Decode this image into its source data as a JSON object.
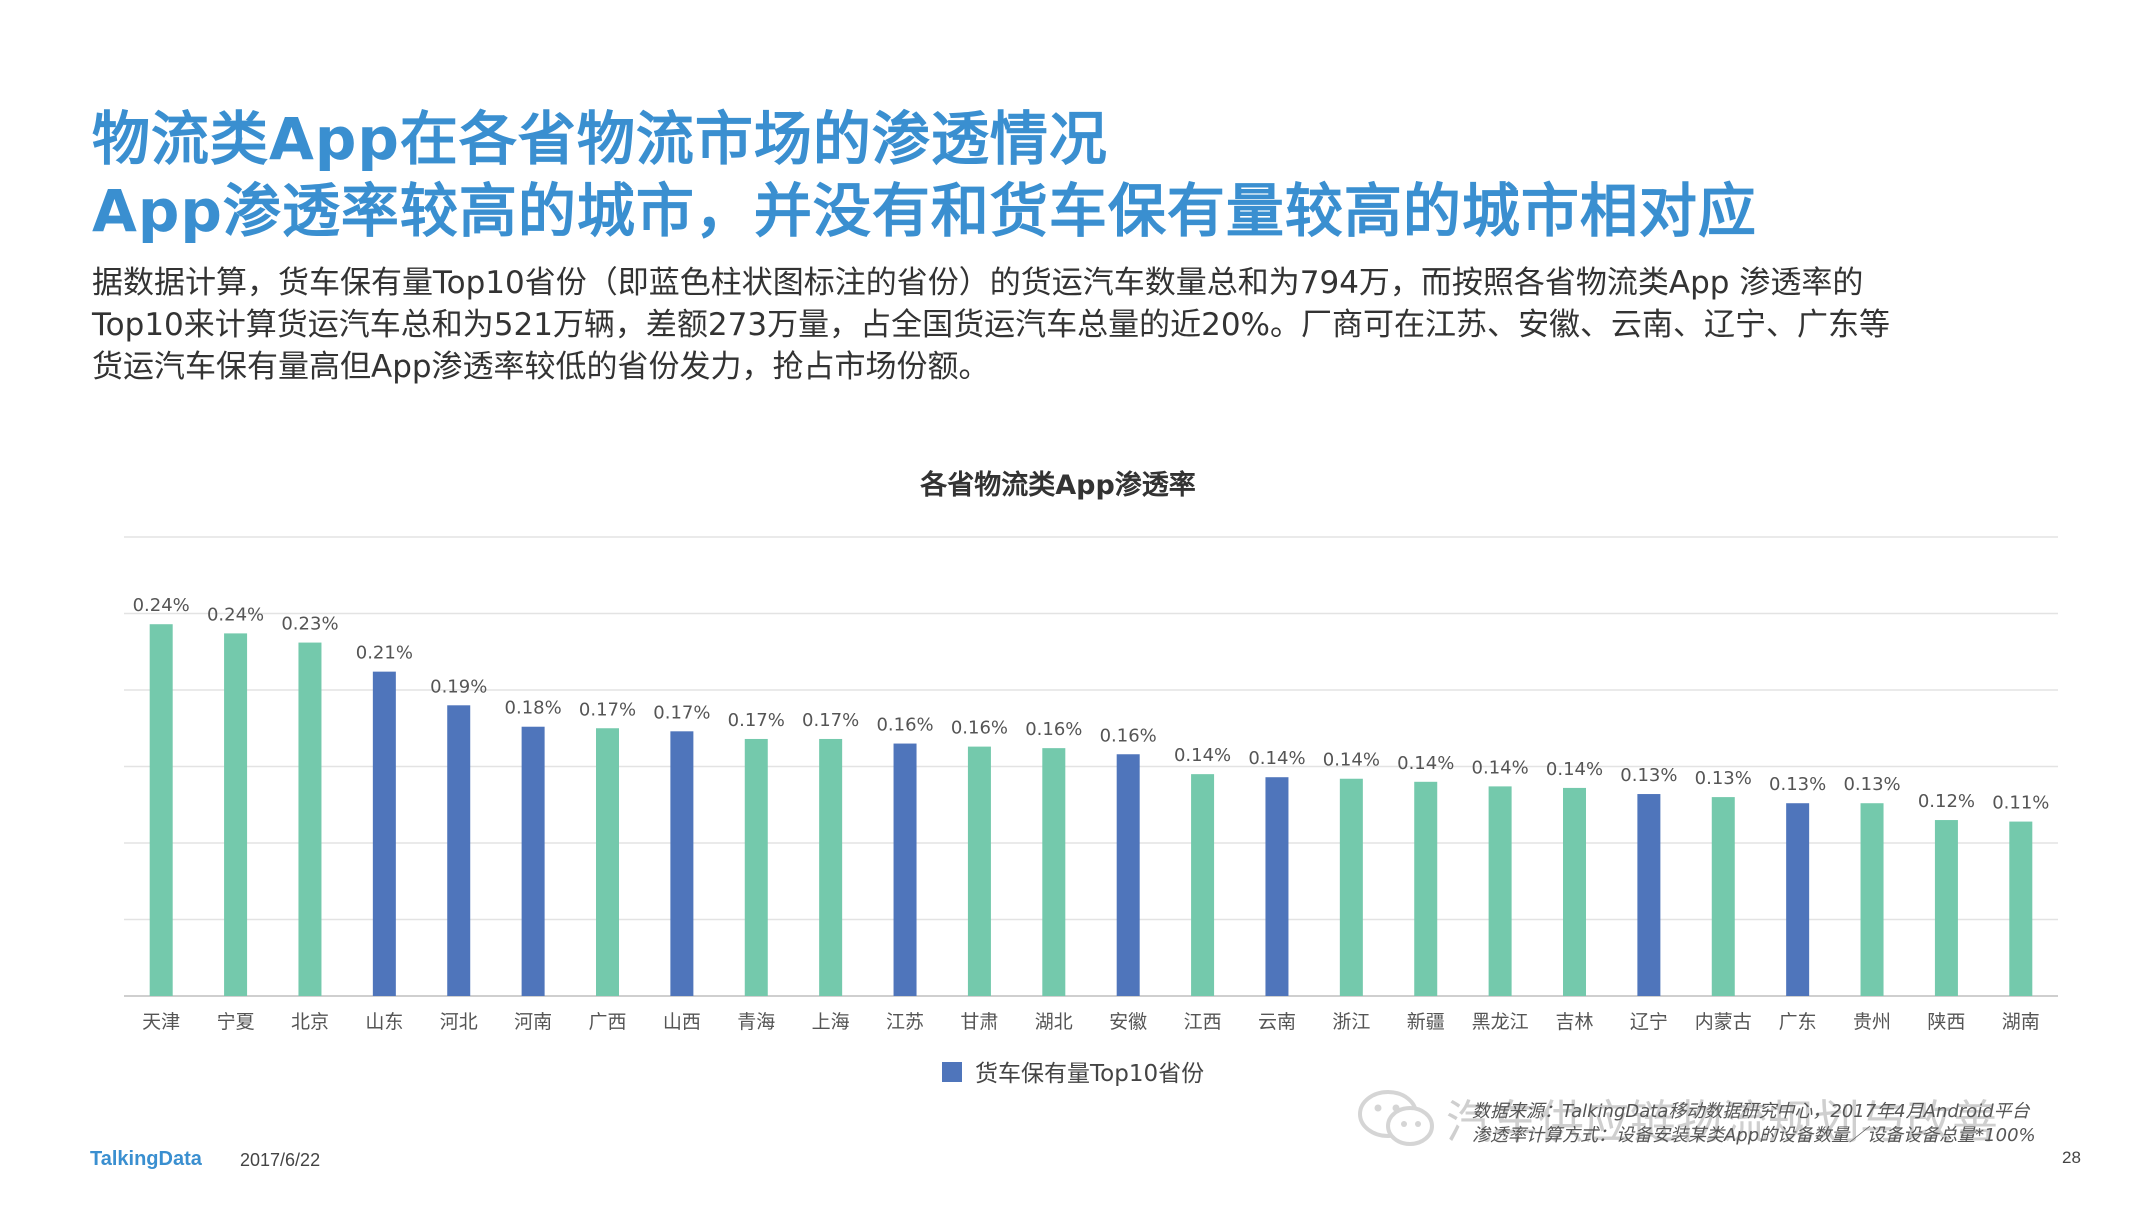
{
  "header": {
    "title_line1": "物流类App在各省物流市场的渗透情况",
    "title_line2": "App渗透率较高的城市，并没有和货车保有量较高的城市相对应"
  },
  "description": {
    "line1": "据数据计算，货车保有量Top10省份（即蓝色柱状图标注的省份）的货运汽车数量总和为794万，而按照各省物流类App 渗透率的",
    "line2": "Top10来计算货运汽车总和为521万辆，差额273万量，占全国货运汽车总量的近20%。厂商可在江苏、安徽、云南、辽宁、广东等",
    "line3": "货运汽车保有量高但App渗透率较低的省份发力，抢占市场份额。"
  },
  "colors": {
    "green": "#74c9ac",
    "blue": "#4f75bb",
    "title": "#3a8fd0",
    "grid": "#e3e3e3"
  },
  "chart_data": {
    "type": "bar",
    "title": "各省物流类App渗透率",
    "categories": [
      "天津",
      "宁夏",
      "北京",
      "山东",
      "河北",
      "河南",
      "广西",
      "山西",
      "青海",
      "上海",
      "江苏",
      "甘肃",
      "湖北",
      "安徽",
      "江西",
      "云南",
      "浙江",
      "新疆",
      "黑龙江",
      "吉林",
      "辽宁",
      "内蒙古",
      "广东",
      "贵州",
      "陕西",
      "湖南"
    ],
    "values": [
      0.00243,
      0.00237,
      0.00231,
      0.00212,
      0.0019,
      0.00176,
      0.00175,
      0.00173,
      0.00168,
      0.00168,
      0.00165,
      0.00163,
      0.00162,
      0.00158,
      0.00145,
      0.00143,
      0.00142,
      0.0014,
      0.00137,
      0.00136,
      0.00132,
      0.0013,
      0.00126,
      0.00126,
      0.00115,
      0.00114
    ],
    "labels": [
      "0.24%",
      "0.24%",
      "0.23%",
      "0.21%",
      "0.19%",
      "0.18%",
      "0.17%",
      "0.17%",
      "0.17%",
      "0.17%",
      "0.16%",
      "0.16%",
      "0.16%",
      "0.16%",
      "0.14%",
      "0.14%",
      "0.14%",
      "0.14%",
      "0.14%",
      "0.14%",
      "0.13%",
      "0.13%",
      "0.13%",
      "0.13%",
      "0.12%",
      "0.11%"
    ],
    "top10_flags": [
      false,
      false,
      false,
      true,
      true,
      true,
      false,
      true,
      false,
      false,
      true,
      false,
      false,
      true,
      false,
      true,
      false,
      false,
      false,
      false,
      true,
      false,
      true,
      false,
      false,
      false
    ],
    "ylim": [
      0,
      0.003
    ],
    "grid": true,
    "legend": {
      "label": "货车保有量Top10省份",
      "position": "bottom"
    }
  },
  "footer": {
    "logo": "TalkingData",
    "date": "2017/6/22",
    "page": "28",
    "source_line1": "数据来源：TalkingData移动数据研究中心，2017年4月Android平台",
    "source_line2": "渗透率计算方式：设备安装某类App的设备数量／设备设备总量*100%",
    "watermark": "汽车供应链物流规划与改善"
  }
}
